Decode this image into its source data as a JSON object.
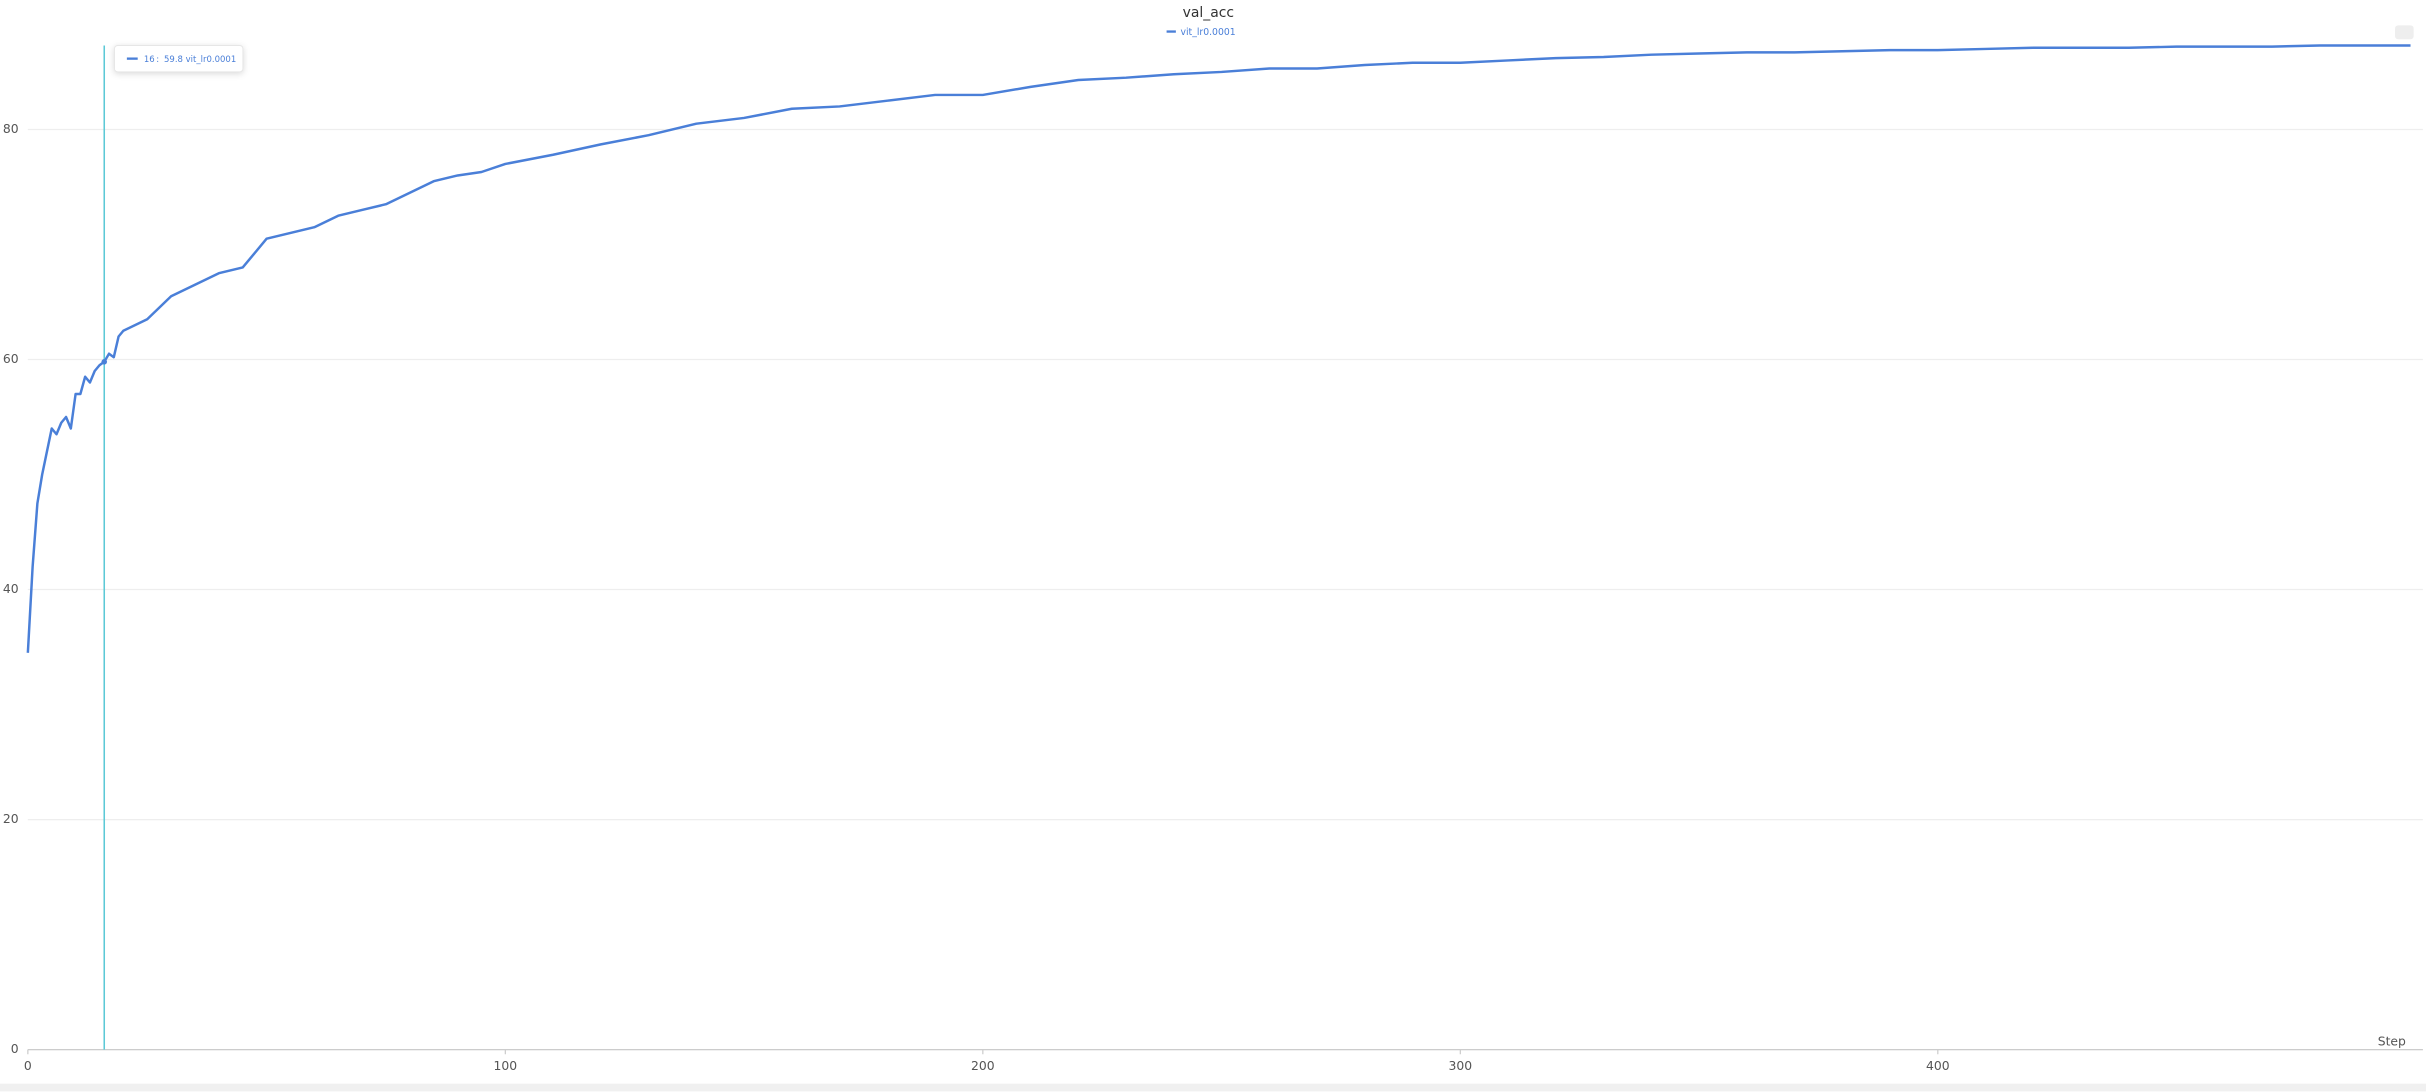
{
  "chart_data": {
    "type": "line",
    "title": "val_acc",
    "xlabel": "Step",
    "x": [
      0,
      1,
      2,
      3,
      4,
      5,
      6,
      7,
      8,
      9,
      10,
      11,
      12,
      13,
      14,
      15,
      16,
      17,
      18,
      19,
      20,
      25,
      30,
      35,
      40,
      45,
      50,
      55,
      60,
      65,
      70,
      75,
      80,
      85,
      90,
      95,
      100,
      110,
      120,
      130,
      140,
      150,
      160,
      170,
      180,
      190,
      200,
      210,
      220,
      230,
      240,
      250,
      260,
      270,
      280,
      290,
      300,
      310,
      320,
      330,
      340,
      350,
      360,
      370,
      380,
      390,
      400,
      410,
      420,
      430,
      440,
      450,
      460,
      470,
      480,
      490,
      499
    ],
    "series": [
      {
        "name": "vit_lr0.0001",
        "color": "#4a7fd8",
        "values": [
          34.5,
          42,
          47.5,
          50,
          52,
          54,
          53.5,
          54.5,
          55,
          54,
          57,
          57,
          58.5,
          58,
          59,
          59.5,
          59.8,
          60.5,
          60.2,
          62,
          62.5,
          63.5,
          65.5,
          66.5,
          67.5,
          68,
          70.5,
          71,
          71.5,
          72.5,
          73,
          73.5,
          74.5,
          75.5,
          76,
          76.3,
          77,
          77.8,
          78.7,
          79.5,
          80.5,
          81,
          81.8,
          82,
          82.5,
          83,
          83,
          83.7,
          84.3,
          84.5,
          84.8,
          85,
          85.3,
          85.3,
          85.6,
          85.8,
          85.8,
          86,
          86.2,
          86.3,
          86.5,
          86.6,
          86.7,
          86.7,
          86.8,
          86.9,
          86.9,
          87,
          87.1,
          87.1,
          87.1,
          87.2,
          87.2,
          87.2,
          87.3,
          87.3,
          87.3
        ]
      }
    ],
    "xlim": [
      0,
      499
    ],
    "ylim": [
      0,
      87.3
    ],
    "xticks": [
      0,
      100,
      200,
      300,
      400
    ],
    "yticks": [
      0,
      20,
      40,
      60,
      80
    ],
    "grid": true,
    "tooltip": {
      "x": 16,
      "separator": ":",
      "y": 59.8,
      "color": "#5cc9d6"
    }
  }
}
